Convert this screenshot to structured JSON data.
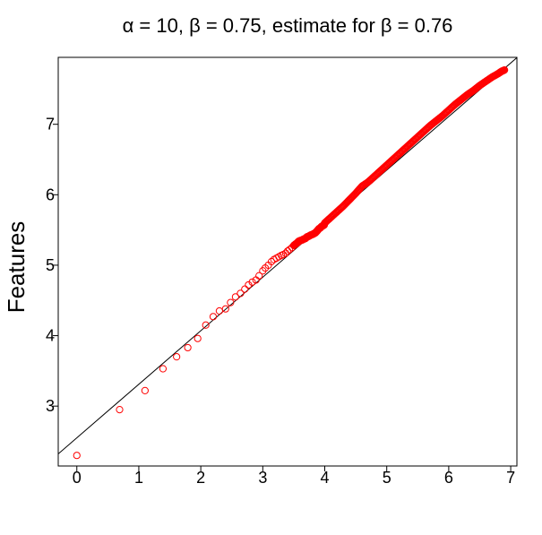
{
  "chart_data": {
    "type": "scatter",
    "title": "α = 10, β = 0.75, estimate for β = 0.76",
    "xlabel": "",
    "ylabel": "Features",
    "xlim": [
      -0.3,
      7.1
    ],
    "ylim": [
      2.15,
      7.95
    ],
    "x_ticks": [
      "0",
      "1",
      "2",
      "3",
      "4",
      "5",
      "6",
      "7"
    ],
    "y_ticks": [
      "3",
      "4",
      "5",
      "6",
      "7"
    ],
    "point_color": "#ff0000",
    "reference_line": {
      "slope": 0.76,
      "intercept": 2.55,
      "color": "#000000"
    },
    "points": {
      "x": [
        0,
        0.69,
        1.1,
        1.39,
        1.61,
        1.79,
        1.95,
        2.08,
        2.2,
        2.3,
        2.4,
        2.48,
        2.56,
        2.64,
        2.71,
        2.77,
        2.83,
        2.89,
        2.94,
        3.0,
        3.04,
        3.09,
        3.14,
        3.18,
        3.22,
        3.26,
        3.3,
        3.33,
        3.37,
        3.4,
        3.43,
        3.47,
        3.5,
        3.53,
        3.56,
        3.58,
        3.61,
        3.64,
        3.66,
        3.69,
        3.71,
        3.74,
        3.76,
        3.78,
        3.81,
        3.83,
        3.85,
        3.87,
        3.89,
        3.91,
        3.93,
        3.95,
        3.97,
        3.99,
        4.0,
        4.1,
        4.2,
        4.3,
        4.4,
        4.5,
        4.6,
        4.7,
        4.8,
        4.9,
        5.0,
        5.1,
        5.2,
        5.3,
        5.4,
        5.5,
        5.6,
        5.7,
        5.8,
        5.9,
        6.0,
        6.1,
        6.2,
        6.3,
        6.4,
        6.5,
        6.6,
        6.7,
        6.8,
        6.85,
        6.9
      ],
      "y": [
        2.3,
        2.95,
        3.22,
        3.53,
        3.7,
        3.83,
        3.96,
        4.15,
        4.27,
        4.35,
        4.38,
        4.47,
        4.55,
        4.6,
        4.66,
        4.72,
        4.76,
        4.79,
        4.85,
        4.92,
        4.96,
        5.0,
        5.05,
        5.08,
        5.1,
        5.12,
        5.14,
        5.15,
        5.17,
        5.2,
        5.22,
        5.25,
        5.28,
        5.3,
        5.32,
        5.34,
        5.35,
        5.36,
        5.37,
        5.38,
        5.4,
        5.41,
        5.42,
        5.43,
        5.44,
        5.45,
        5.46,
        5.48,
        5.5,
        5.52,
        5.53,
        5.55,
        5.56,
        5.57,
        5.6,
        5.68,
        5.76,
        5.84,
        5.93,
        6.02,
        6.12,
        6.18,
        6.26,
        6.34,
        6.42,
        6.5,
        6.58,
        6.66,
        6.74,
        6.82,
        6.9,
        6.98,
        7.05,
        7.12,
        7.2,
        7.28,
        7.35,
        7.42,
        7.48,
        7.55,
        7.61,
        7.67,
        7.72,
        7.75,
        7.77
      ]
    }
  }
}
